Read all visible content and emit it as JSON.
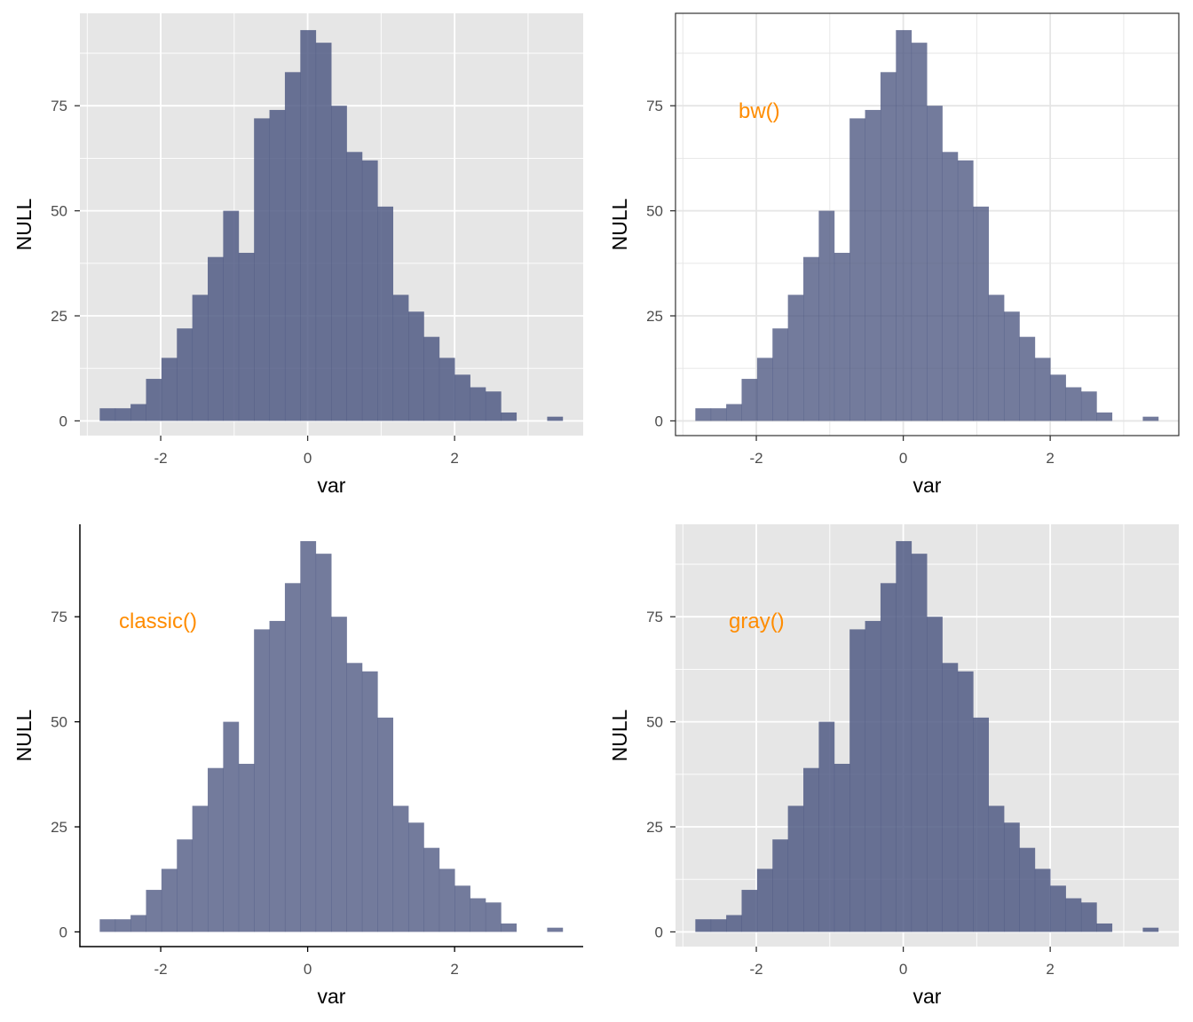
{
  "colors": {
    "bar_fill": "#4b5680",
    "annotation": "#ff8c00",
    "panel_gray": "#e6e6e6",
    "grid_white": "#ffffff",
    "grid_light": "#e5e5e5",
    "tick_text": "#4d4d4d"
  },
  "chart_data": [
    {
      "type": "bar",
      "subtype": "histogram",
      "theme": "default",
      "annotation": "",
      "xlabel": "var",
      "ylabel": "NULL",
      "xlim": [
        -3.1,
        3.75
      ],
      "ylim": [
        -3.5,
        97
      ],
      "xticks": [
        "-2",
        "0",
        "2"
      ],
      "xtick_values": [
        -2,
        0,
        2
      ],
      "yticks": [
        "0",
        "25",
        "50",
        "75"
      ],
      "ytick_values": [
        0,
        25,
        50,
        75
      ],
      "bin_width": 0.21,
      "bin_starts": [
        -2.83,
        -2.62,
        -2.41,
        -2.2,
        -1.99,
        -1.78,
        -1.57,
        -1.36,
        -1.15,
        -0.94,
        -0.73,
        -0.52,
        -0.31,
        -0.1,
        0.11,
        0.32,
        0.53,
        0.74,
        0.95,
        1.16,
        1.37,
        1.58,
        1.79,
        2.0,
        2.21,
        2.42,
        2.63,
        2.84,
        3.05,
        3.26
      ],
      "counts": [
        3,
        3,
        4,
        10,
        15,
        22,
        30,
        39,
        50,
        40,
        72,
        74,
        83,
        93,
        90,
        75,
        64,
        62,
        51,
        30,
        26,
        20,
        15,
        11,
        8,
        7,
        2,
        0,
        0,
        1
      ]
    },
    {
      "type": "bar",
      "subtype": "histogram",
      "theme": "bw",
      "annotation": "bw()",
      "xlabel": "var",
      "ylabel": "NULL",
      "xlim": [
        -3.1,
        3.75
      ],
      "ylim": [
        -3.5,
        97
      ],
      "xticks": [
        "-2",
        "0",
        "2"
      ],
      "xtick_values": [
        -2,
        0,
        2
      ],
      "yticks": [
        "0",
        "25",
        "50",
        "75"
      ],
      "ytick_values": [
        0,
        25,
        50,
        75
      ],
      "bin_width": 0.21,
      "bin_starts": [
        -2.83,
        -2.62,
        -2.41,
        -2.2,
        -1.99,
        -1.78,
        -1.57,
        -1.36,
        -1.15,
        -0.94,
        -0.73,
        -0.52,
        -0.31,
        -0.1,
        0.11,
        0.32,
        0.53,
        0.74,
        0.95,
        1.16,
        1.37,
        1.58,
        1.79,
        2.0,
        2.21,
        2.42,
        2.63,
        2.84,
        3.05,
        3.26
      ],
      "counts": [
        3,
        3,
        4,
        10,
        15,
        22,
        30,
        39,
        50,
        40,
        72,
        74,
        83,
        93,
        90,
        75,
        64,
        62,
        51,
        30,
        26,
        20,
        15,
        11,
        8,
        7,
        2,
        0,
        0,
        1
      ]
    },
    {
      "type": "bar",
      "subtype": "histogram",
      "theme": "classic",
      "annotation": "classic()",
      "xlabel": "var",
      "ylabel": "NULL",
      "xlim": [
        -3.1,
        3.75
      ],
      "ylim": [
        -3.5,
        97
      ],
      "xticks": [
        "-2",
        "0",
        "2"
      ],
      "xtick_values": [
        -2,
        0,
        2
      ],
      "yticks": [
        "0",
        "25",
        "50",
        "75"
      ],
      "ytick_values": [
        0,
        25,
        50,
        75
      ],
      "bin_width": 0.21,
      "bin_starts": [
        -2.83,
        -2.62,
        -2.41,
        -2.2,
        -1.99,
        -1.78,
        -1.57,
        -1.36,
        -1.15,
        -0.94,
        -0.73,
        -0.52,
        -0.31,
        -0.1,
        0.11,
        0.32,
        0.53,
        0.74,
        0.95,
        1.16,
        1.37,
        1.58,
        1.79,
        2.0,
        2.21,
        2.42,
        2.63,
        2.84,
        3.05,
        3.26
      ],
      "counts": [
        3,
        3,
        4,
        10,
        15,
        22,
        30,
        39,
        50,
        40,
        72,
        74,
        83,
        93,
        90,
        75,
        64,
        62,
        51,
        30,
        26,
        20,
        15,
        11,
        8,
        7,
        2,
        0,
        0,
        1
      ]
    },
    {
      "type": "bar",
      "subtype": "histogram",
      "theme": "gray",
      "annotation": "gray()",
      "xlabel": "var",
      "ylabel": "NULL",
      "xlim": [
        -3.1,
        3.75
      ],
      "ylim": [
        -3.5,
        97
      ],
      "xticks": [
        "-2",
        "0",
        "2"
      ],
      "xtick_values": [
        -2,
        0,
        2
      ],
      "yticks": [
        "0",
        "25",
        "50",
        "75"
      ],
      "ytick_values": [
        0,
        25,
        50,
        75
      ],
      "bin_width": 0.21,
      "bin_starts": [
        -2.83,
        -2.62,
        -2.41,
        -2.2,
        -1.99,
        -1.78,
        -1.57,
        -1.36,
        -1.15,
        -0.94,
        -0.73,
        -0.52,
        -0.31,
        -0.1,
        0.11,
        0.32,
        0.53,
        0.74,
        0.95,
        1.16,
        1.37,
        1.58,
        1.79,
        2.0,
        2.21,
        2.42,
        2.63,
        2.84,
        3.05,
        3.26
      ],
      "counts": [
        3,
        3,
        4,
        10,
        15,
        22,
        30,
        39,
        50,
        40,
        72,
        74,
        83,
        93,
        90,
        75,
        64,
        62,
        51,
        30,
        26,
        20,
        15,
        11,
        8,
        7,
        2,
        0,
        0,
        1
      ]
    }
  ]
}
